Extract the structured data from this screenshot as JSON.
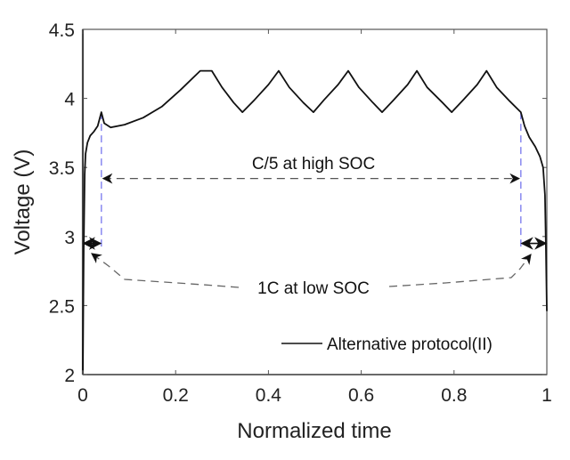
{
  "chart_data": {
    "type": "line",
    "title": "",
    "xlabel": "Normalized time",
    "ylabel": "Voltage (V)",
    "xlim": [
      0,
      1
    ],
    "ylim": [
      2,
      4.5
    ],
    "xticks": [
      0,
      0.2,
      0.4,
      0.6,
      0.8,
      1
    ],
    "xtick_labels": [
      "0",
      "0.2",
      "0.4",
      "0.6",
      "0.8",
      "1"
    ],
    "yticks": [
      2,
      2.5,
      3,
      3.5,
      4,
      4.5
    ],
    "ytick_labels": [
      "2",
      "2.5",
      "3",
      "3.5",
      "4",
      "4.5"
    ],
    "grid": false,
    "legend": {
      "position": "bottom-right",
      "entries": [
        "Alternative protocol(II)"
      ]
    },
    "series": [
      {
        "name": "Alternative protocol(II)",
        "color": "#111111",
        "x": [
          0.0,
          0.002,
          0.004,
          0.006,
          0.01,
          0.016,
          0.024,
          0.032,
          0.04,
          0.046,
          0.06,
          0.09,
          0.13,
          0.17,
          0.21,
          0.253,
          0.278,
          0.3,
          0.325,
          0.344,
          0.37,
          0.4,
          0.422,
          0.445,
          0.475,
          0.497,
          0.52,
          0.55,
          0.572,
          0.595,
          0.625,
          0.645,
          0.67,
          0.7,
          0.72,
          0.742,
          0.775,
          0.795,
          0.82,
          0.85,
          0.87,
          0.892,
          0.92,
          0.944,
          0.952,
          0.962,
          0.975,
          0.985,
          0.992,
          0.996,
          0.998,
          1.0
        ],
        "y": [
          2.03,
          2.9,
          3.45,
          3.6,
          3.68,
          3.73,
          3.76,
          3.8,
          3.9,
          3.82,
          3.79,
          3.81,
          3.86,
          3.94,
          4.06,
          4.2,
          4.2,
          4.08,
          3.97,
          3.9,
          3.99,
          4.1,
          4.2,
          4.08,
          3.97,
          3.9,
          3.99,
          4.1,
          4.2,
          4.08,
          3.97,
          3.9,
          3.99,
          4.1,
          4.2,
          4.08,
          3.97,
          3.9,
          3.99,
          4.1,
          4.2,
          4.08,
          3.98,
          3.9,
          3.8,
          3.72,
          3.65,
          3.58,
          3.5,
          3.3,
          2.9,
          2.46
        ]
      }
    ],
    "annotations": [
      {
        "text": "C/5 at high SOC",
        "type": "double-arrow",
        "from_x": 0.04,
        "to_x": 0.944,
        "y": 3.42
      },
      {
        "text": "1C at low SOC",
        "type": "curved-arrows",
        "targets": [
          [
            0.02,
            2.94
          ],
          [
            0.97,
            2.94
          ]
        ]
      },
      {
        "type": "small-double-arrow",
        "from_x": 0.0,
        "to_x": 0.04,
        "y": 2.95
      },
      {
        "type": "small-double-arrow",
        "from_x": 0.944,
        "to_x": 1.0,
        "y": 2.95
      },
      {
        "type": "vertical-dashed-line",
        "x": 0.04,
        "y_range": [
          2.9,
          3.9
        ],
        "color": "#7777ee"
      },
      {
        "type": "vertical-dashed-line",
        "x": 0.944,
        "y_range": [
          2.9,
          3.9
        ],
        "color": "#7777ee"
      }
    ]
  }
}
